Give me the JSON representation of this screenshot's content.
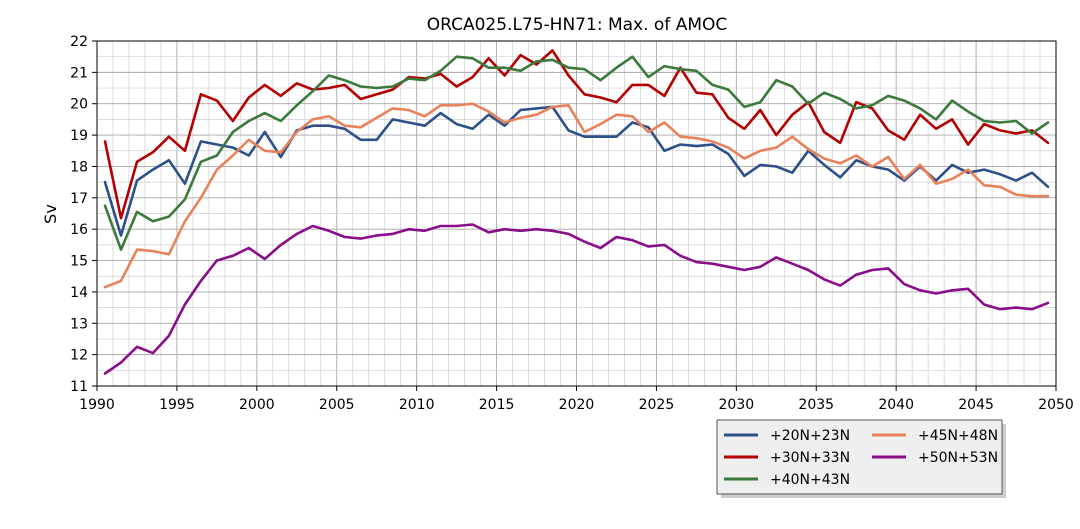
{
  "chart_data": {
    "type": "line",
    "title": "ORCA025.L75-HN71: Max. of AMOC",
    "xlabel": "",
    "ylabel": "Sv",
    "xlim": [
      1990,
      2050
    ],
    "ylim": [
      11,
      22
    ],
    "xticks": [
      1990,
      1995,
      2000,
      2005,
      2010,
      2015,
      2020,
      2025,
      2030,
      2035,
      2040,
      2045,
      2050
    ],
    "yticks": [
      11,
      12,
      13,
      14,
      15,
      16,
      17,
      18,
      19,
      20,
      21,
      22
    ],
    "grid": true,
    "legend_position": "bottom-right, below plot",
    "x": [
      1990.5,
      1991.5,
      1992.5,
      1993.5,
      1994.5,
      1995.5,
      1996.5,
      1997.5,
      1998.5,
      1999.5,
      2000.5,
      2001.5,
      2002.5,
      2003.5,
      2004.5,
      2005.5,
      2006.5,
      2007.5,
      2008.5,
      2009.5,
      2010.5,
      2011.5,
      2012.5,
      2013.5,
      2014.5,
      2015.5,
      2016.5,
      2017.5,
      2018.5,
      2019.5,
      2020.5,
      2021.5,
      2022.5,
      2023.5,
      2024.5,
      2025.5,
      2026.5,
      2027.5,
      2028.5,
      2029.5,
      2030.5,
      2031.5,
      2032.5,
      2033.5,
      2034.5,
      2035.5,
      2036.5,
      2037.5,
      2038.5,
      2039.5,
      2040.5,
      2041.5,
      2042.5,
      2043.5,
      2044.5,
      2045.5,
      2046.5,
      2047.5,
      2048.5,
      2049.5
    ],
    "series": [
      {
        "name": "+20N+23N",
        "color": "#2d5088",
        "values": [
          17.5,
          15.8,
          17.55,
          17.9,
          18.2,
          17.45,
          18.8,
          18.7,
          18.6,
          18.35,
          19.1,
          18.3,
          19.15,
          19.3,
          19.3,
          19.2,
          18.85,
          18.85,
          19.5,
          19.4,
          19.3,
          19.7,
          19.35,
          19.2,
          19.65,
          19.3,
          19.8,
          19.85,
          19.9,
          19.15,
          18.95,
          18.95,
          18.95,
          19.4,
          19.25,
          18.5,
          18.7,
          18.65,
          18.7,
          18.4,
          17.7,
          18.05,
          18.0,
          17.8,
          18.5,
          18.05,
          17.65,
          18.2,
          18.0,
          17.9,
          17.55,
          18.0,
          17.55,
          18.05,
          17.8,
          17.9,
          17.75,
          17.55,
          17.8,
          17.35
        ]
      },
      {
        "name": "+30N+33N",
        "color": "#b30000",
        "values": [
          18.8,
          16.35,
          18.15,
          18.45,
          18.95,
          18.5,
          20.3,
          20.1,
          19.45,
          20.2,
          20.6,
          20.25,
          20.65,
          20.45,
          20.5,
          20.6,
          20.15,
          20.3,
          20.45,
          20.85,
          20.8,
          20.95,
          20.55,
          20.85,
          21.45,
          20.9,
          21.55,
          21.25,
          21.7,
          20.9,
          20.3,
          20.2,
          20.05,
          20.6,
          20.6,
          20.25,
          21.15,
          20.35,
          20.3,
          19.55,
          19.2,
          19.8,
          19.0,
          19.65,
          20.05,
          19.1,
          18.75,
          20.05,
          19.85,
          19.15,
          18.85,
          19.65,
          19.2,
          19.5,
          18.7,
          19.35,
          19.15,
          19.05,
          19.15,
          18.75
        ]
      },
      {
        "name": "+40N+43N",
        "color": "#3b7a3b",
        "values": [
          16.75,
          15.35,
          16.55,
          16.25,
          16.4,
          16.95,
          18.15,
          18.35,
          19.1,
          19.45,
          19.7,
          19.45,
          19.95,
          20.4,
          20.9,
          20.75,
          20.55,
          20.5,
          20.55,
          20.8,
          20.75,
          21.05,
          21.5,
          21.45,
          21.15,
          21.15,
          21.05,
          21.35,
          21.4,
          21.15,
          21.1,
          20.75,
          21.15,
          21.5,
          20.85,
          21.2,
          21.1,
          21.05,
          20.6,
          20.45,
          19.9,
          20.05,
          20.75,
          20.55,
          20.0,
          20.35,
          20.15,
          19.85,
          19.95,
          20.25,
          20.1,
          19.85,
          19.5,
          20.1,
          19.75,
          19.45,
          19.4,
          19.45,
          19.05,
          19.4
        ]
      },
      {
        "name": "+45N+48N",
        "color": "#e8825a",
        "values": [
          14.15,
          14.35,
          15.35,
          15.3,
          15.2,
          16.25,
          17.0,
          17.9,
          18.35,
          18.85,
          18.5,
          18.45,
          19.1,
          19.5,
          19.6,
          19.3,
          19.25,
          19.55,
          19.85,
          19.8,
          19.6,
          19.95,
          19.95,
          20.0,
          19.75,
          19.4,
          19.55,
          19.65,
          19.9,
          19.95,
          19.1,
          19.35,
          19.65,
          19.6,
          19.1,
          19.4,
          18.95,
          18.9,
          18.8,
          18.6,
          18.25,
          18.5,
          18.6,
          18.95,
          18.55,
          18.25,
          18.1,
          18.35,
          18.0,
          18.3,
          17.6,
          18.05,
          17.45,
          17.6,
          17.9,
          17.4,
          17.35,
          17.1,
          17.05,
          17.05
        ]
      },
      {
        "name": "+50N+53N",
        "color": "#8a0e8a",
        "values": [
          11.4,
          11.75,
          12.25,
          12.05,
          12.6,
          13.6,
          14.35,
          15.0,
          15.15,
          15.4,
          15.05,
          15.5,
          15.85,
          16.1,
          15.95,
          15.75,
          15.7,
          15.8,
          15.85,
          16.0,
          15.95,
          16.1,
          16.1,
          16.15,
          15.9,
          16.0,
          15.95,
          16.0,
          15.95,
          15.85,
          15.6,
          15.4,
          15.75,
          15.65,
          15.45,
          15.5,
          15.15,
          14.95,
          14.9,
          14.8,
          14.7,
          14.8,
          15.1,
          14.9,
          14.7,
          14.4,
          14.2,
          14.55,
          14.7,
          14.75,
          14.25,
          14.05,
          13.95,
          14.05,
          14.1,
          13.6,
          13.45,
          13.5,
          13.45,
          13.65
        ]
      }
    ]
  }
}
